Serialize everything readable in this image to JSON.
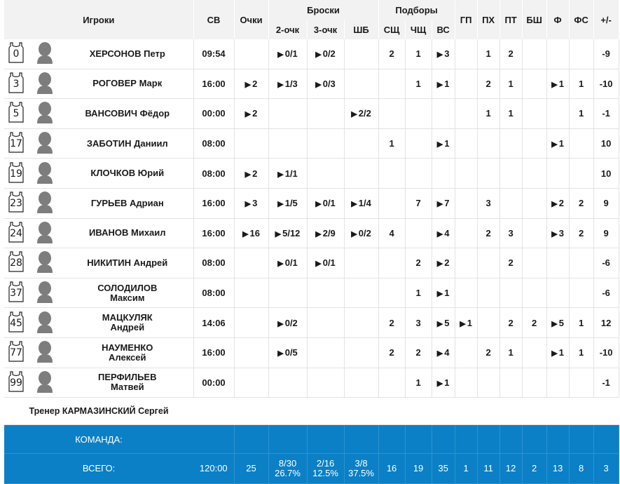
{
  "header": {
    "players": "Игроки",
    "minutes": "СВ",
    "points": "Очки",
    "shots": "Броски",
    "two_pt": "2-очк",
    "three_pt": "3-очк",
    "free_throws": "ШБ",
    "rebounds": "Подборы",
    "def_reb": "СЩ",
    "off_reb": "ЧЩ",
    "total_reb": "ВС",
    "assists": "ГП",
    "turnovers": "ПХ",
    "steals": "ПТ",
    "blocks": "БШ",
    "fouls": "Ф",
    "fouls_drawn": "ФС",
    "plus_minus": "+/-"
  },
  "players": [
    {
      "num": "0",
      "last": "ХЕРСОНОВ",
      "first": "Петр",
      "two_line": false,
      "min": "09:54",
      "pts": "",
      "pts_p": false,
      "p2": "0/1",
      "p2_p": true,
      "p3": "0/2",
      "p3_p": true,
      "ft": "",
      "ft_p": false,
      "dr": "2",
      "or": "1",
      "tr": "3",
      "tr_p": true,
      "as": "",
      "to": "1",
      "st": "2",
      "bl": "",
      "pf": "",
      "pf_p": false,
      "fd": "",
      "pm": "-9"
    },
    {
      "num": "3",
      "last": "РОГОВЕР",
      "first": "Марк",
      "two_line": false,
      "min": "16:00",
      "pts": "2",
      "pts_p": true,
      "p2": "1/3",
      "p2_p": true,
      "p3": "0/3",
      "p3_p": true,
      "ft": "",
      "ft_p": false,
      "dr": "",
      "or": "1",
      "tr": "1",
      "tr_p": true,
      "as": "",
      "to": "2",
      "st": "1",
      "bl": "",
      "pf": "1",
      "pf_p": true,
      "fd": "1",
      "pm": "-10"
    },
    {
      "num": "5",
      "last": "ВАНСОВИЧ",
      "first": "Фёдор",
      "two_line": false,
      "min": "00:00",
      "pts": "2",
      "pts_p": true,
      "p2": "",
      "p2_p": false,
      "p3": "",
      "p3_p": false,
      "ft": "2/2",
      "ft_p": true,
      "dr": "",
      "or": "",
      "tr": "",
      "tr_p": false,
      "as": "",
      "to": "1",
      "st": "1",
      "bl": "",
      "pf": "",
      "pf_p": false,
      "fd": "1",
      "pm": "-1"
    },
    {
      "num": "17",
      "last": "ЗАБОТИН",
      "first": "Даниил",
      "two_line": false,
      "min": "08:00",
      "pts": "",
      "pts_p": false,
      "p2": "",
      "p2_p": false,
      "p3": "",
      "p3_p": false,
      "ft": "",
      "ft_p": false,
      "dr": "1",
      "or": "",
      "tr": "1",
      "tr_p": true,
      "as": "",
      "to": "",
      "st": "",
      "bl": "",
      "pf": "1",
      "pf_p": true,
      "fd": "",
      "pm": "10"
    },
    {
      "num": "19",
      "last": "КЛОЧКОВ",
      "first": "Юрий",
      "two_line": false,
      "min": "08:00",
      "pts": "2",
      "pts_p": true,
      "p2": "1/1",
      "p2_p": true,
      "p3": "",
      "p3_p": false,
      "ft": "",
      "ft_p": false,
      "dr": "",
      "or": "",
      "tr": "",
      "tr_p": false,
      "as": "",
      "to": "",
      "st": "",
      "bl": "",
      "pf": "",
      "pf_p": false,
      "fd": "",
      "pm": "10"
    },
    {
      "num": "23",
      "last": "ГУРЬЕВ",
      "first": "Адриан",
      "two_line": false,
      "min": "16:00",
      "pts": "3",
      "pts_p": true,
      "p2": "1/5",
      "p2_p": true,
      "p3": "0/1",
      "p3_p": true,
      "ft": "1/4",
      "ft_p": true,
      "dr": "",
      "or": "7",
      "tr": "7",
      "tr_p": true,
      "as": "",
      "to": "3",
      "st": "",
      "bl": "",
      "pf": "2",
      "pf_p": true,
      "fd": "2",
      "pm": "9"
    },
    {
      "num": "24",
      "last": "ИВАНОВ",
      "first": "Михаил",
      "two_line": false,
      "min": "16:00",
      "pts": "16",
      "pts_p": true,
      "p2": "5/12",
      "p2_p": true,
      "p3": "2/9",
      "p3_p": true,
      "ft": "0/2",
      "ft_p": true,
      "dr": "4",
      "or": "",
      "tr": "4",
      "tr_p": true,
      "as": "",
      "to": "2",
      "st": "3",
      "bl": "",
      "pf": "3",
      "pf_p": true,
      "fd": "2",
      "pm": "9"
    },
    {
      "num": "28",
      "last": "НИКИТИН",
      "first": "Андрей",
      "two_line": false,
      "min": "08:00",
      "pts": "",
      "pts_p": false,
      "p2": "0/1",
      "p2_p": true,
      "p3": "0/1",
      "p3_p": true,
      "ft": "",
      "ft_p": false,
      "dr": "",
      "or": "2",
      "tr": "2",
      "tr_p": true,
      "as": "",
      "to": "",
      "st": "2",
      "bl": "",
      "pf": "",
      "pf_p": false,
      "fd": "",
      "pm": "-6"
    },
    {
      "num": "37",
      "last": "СОЛОДИЛОВ",
      "first": "Максим",
      "two_line": true,
      "min": "08:00",
      "pts": "",
      "pts_p": false,
      "p2": "",
      "p2_p": false,
      "p3": "",
      "p3_p": false,
      "ft": "",
      "ft_p": false,
      "dr": "",
      "or": "1",
      "tr": "1",
      "tr_p": true,
      "as": "",
      "to": "",
      "st": "",
      "bl": "",
      "pf": "",
      "pf_p": false,
      "fd": "",
      "pm": "-6"
    },
    {
      "num": "45",
      "last": "МАЦКУЛЯК",
      "first": "Андрей",
      "two_line": true,
      "min": "14:06",
      "pts": "",
      "pts_p": false,
      "p2": "0/2",
      "p2_p": true,
      "p3": "",
      "p3_p": false,
      "ft": "",
      "ft_p": false,
      "dr": "2",
      "or": "3",
      "tr": "5",
      "tr_p": true,
      "as": "1",
      "as_p": true,
      "to": "",
      "st": "2",
      "bl": "2",
      "pf": "5",
      "pf_p": true,
      "fd": "1",
      "pm": "12"
    },
    {
      "num": "77",
      "last": "НАУМЕНКО",
      "first": "Алексей",
      "two_line": true,
      "min": "16:00",
      "pts": "",
      "pts_p": false,
      "p2": "0/5",
      "p2_p": true,
      "p3": "",
      "p3_p": false,
      "ft": "",
      "ft_p": false,
      "dr": "2",
      "or": "2",
      "tr": "4",
      "tr_p": true,
      "as": "",
      "to": "2",
      "st": "1",
      "bl": "",
      "pf": "1",
      "pf_p": true,
      "fd": "1",
      "pm": "-10"
    },
    {
      "num": "99",
      "last": "ПЕРФИЛЬЕВ",
      "first": "Матвей",
      "two_line": true,
      "min": "00:00",
      "pts": "",
      "pts_p": false,
      "p2": "",
      "p2_p": false,
      "p3": "",
      "p3_p": false,
      "ft": "",
      "ft_p": false,
      "dr": "",
      "or": "1",
      "tr": "1",
      "tr_p": true,
      "as": "",
      "to": "",
      "st": "",
      "bl": "",
      "pf": "",
      "pf_p": false,
      "fd": "",
      "pm": "-1"
    }
  ],
  "coach": {
    "text": "Тренер КАРМАЗИНСКИЙ Сергей"
  },
  "team": {
    "label": "КОМАНДА:"
  },
  "totals": {
    "label": "ВСЕГО:",
    "min": "120:00",
    "pts": "25",
    "p2": "8/30",
    "p2_pct": "26.7%",
    "p3": "2/16",
    "p3_pct": "12.5%",
    "ft": "3/8",
    "ft_pct": "37.5%",
    "dr": "16",
    "or": "19",
    "tr": "35",
    "as": "1",
    "to": "11",
    "st": "12",
    "bl": "2",
    "pf": "13",
    "fd": "8",
    "pm": "3"
  },
  "colors": {
    "header_bg": "#f2f2f2",
    "team_bg": "#0b80c6"
  },
  "icons": {
    "play": "play-icon",
    "jersey": "jersey-icon",
    "avatar": "avatar-icon"
  }
}
